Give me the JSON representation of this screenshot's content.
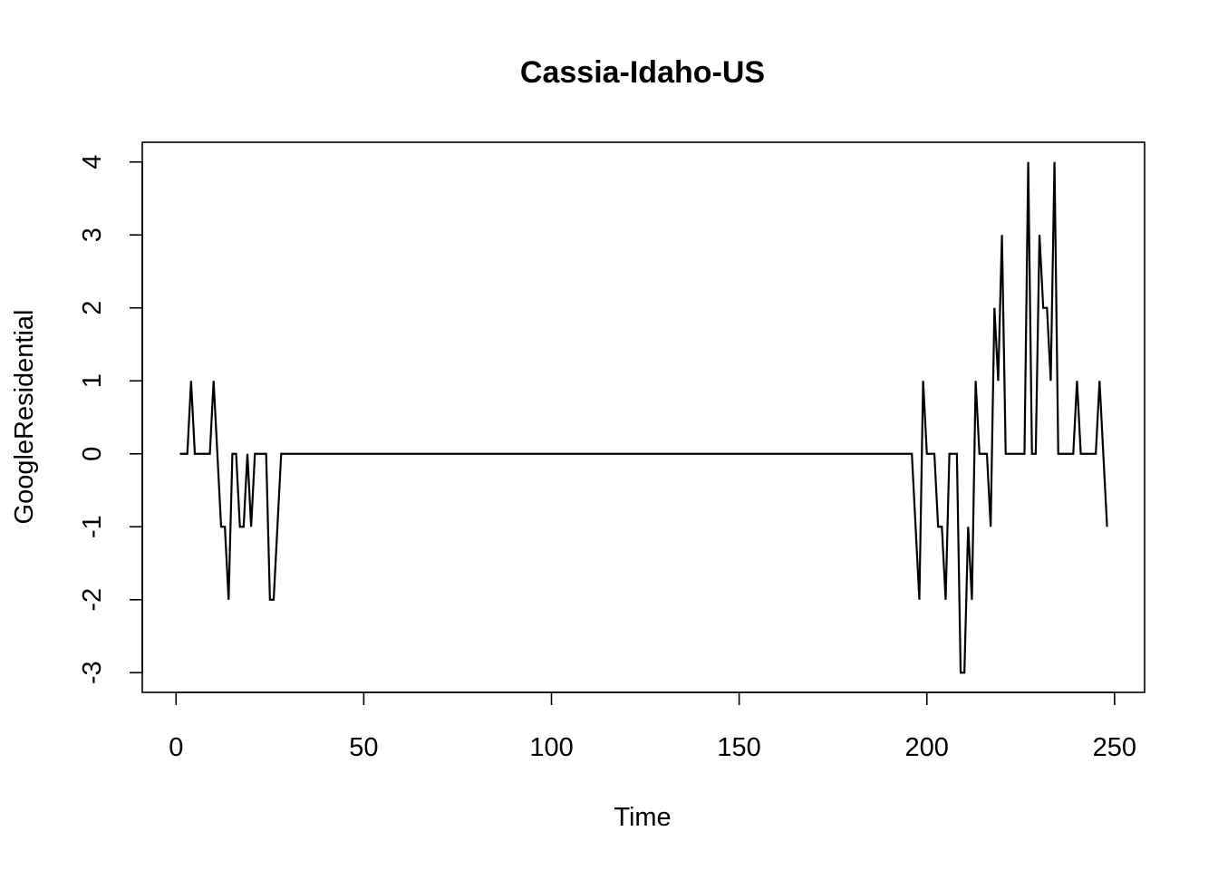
{
  "chart_data": {
    "type": "line",
    "title": "Cassia-Idaho-US",
    "xlabel": "Time",
    "ylabel": "GoogleResidential",
    "xlim": [
      -9,
      258
    ],
    "ylim": [
      -3.27,
      4.27
    ],
    "xticks": [
      0,
      50,
      100,
      150,
      200,
      250
    ],
    "xtick_labels": [
      "0",
      "50",
      "100",
      "150",
      "200",
      "250"
    ],
    "yticks": [
      -3,
      -2,
      -1,
      0,
      1,
      2,
      3,
      4
    ],
    "ytick_labels": [
      "-3",
      "-2",
      "-1",
      "0",
      "1",
      "2",
      "3",
      "4"
    ],
    "grid": false,
    "legend": "none",
    "series": [
      {
        "color": "#000000",
        "x": [
          1,
          2,
          3,
          4,
          5,
          6,
          7,
          8,
          9,
          10,
          11,
          12,
          13,
          14,
          15,
          16,
          17,
          18,
          19,
          20,
          21,
          22,
          23,
          24,
          25,
          26,
          27,
          28,
          29,
          196,
          197,
          198,
          199,
          200,
          201,
          202,
          203,
          204,
          205,
          206,
          207,
          208,
          209,
          210,
          211,
          212,
          213,
          214,
          215,
          216,
          217,
          218,
          219,
          220,
          221,
          222,
          223,
          224,
          225,
          226,
          227,
          228,
          229,
          230,
          231,
          232,
          233,
          234,
          235,
          236,
          237,
          238,
          239,
          240,
          241,
          242,
          243,
          244,
          245,
          246,
          247,
          248
        ],
        "y": [
          0,
          0,
          0,
          1,
          0,
          0,
          0,
          0,
          0,
          1,
          0,
          -1,
          -1,
          -2,
          0,
          0,
          -1,
          -1,
          0,
          -1,
          0,
          0,
          0,
          0,
          -2,
          -2,
          -1,
          0,
          0,
          0,
          -1,
          -2,
          1,
          0,
          0,
          0,
          -1,
          -1,
          -2,
          0,
          0,
          0,
          -3,
          -3,
          -1,
          -2,
          1,
          0,
          0,
          0,
          -1,
          2,
          1,
          3,
          0,
          0,
          0,
          0,
          0,
          0,
          4,
          0,
          0,
          3,
          2,
          2,
          1,
          4,
          0,
          0,
          0,
          0,
          0,
          1,
          0,
          0,
          0,
          0,
          0,
          1,
          0,
          -1
        ]
      }
    ]
  }
}
